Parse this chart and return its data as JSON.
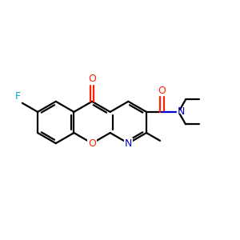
{
  "bg_color": "#ffffff",
  "bond_color": "#000000",
  "oxygen_color": "#ff2200",
  "nitrogen_color": "#0000cc",
  "fluorine_color": "#00aacc",
  "lw": 1.6,
  "a": 0.88,
  "figsize": [
    3.0,
    3.0
  ],
  "dpi": 100,
  "xlim": [
    0.5,
    10.5
  ],
  "ylim": [
    2.5,
    8.5
  ]
}
